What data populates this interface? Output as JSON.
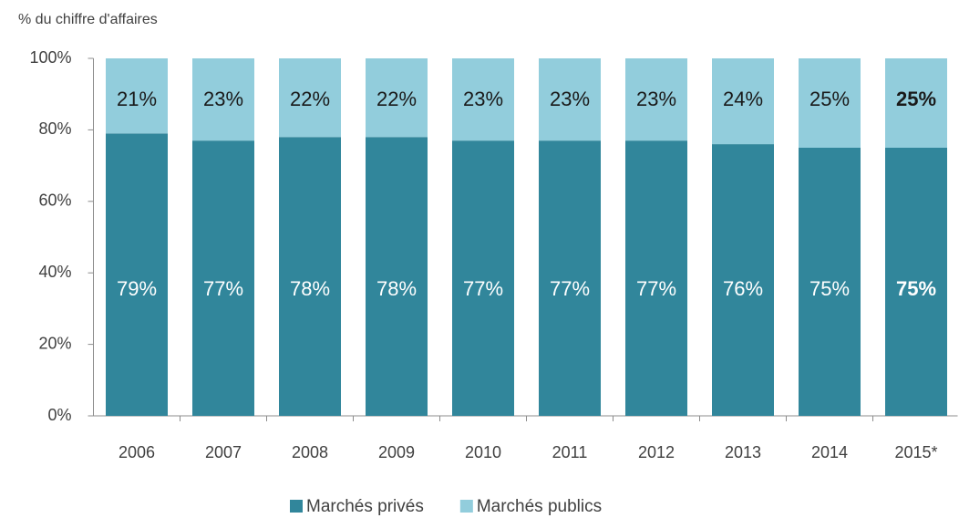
{
  "chart_data": {
    "type": "stacked_bar",
    "y_axis_label": "% du chiffre d'affaires",
    "categories": [
      "2006",
      "2007",
      "2008",
      "2009",
      "2010",
      "2011",
      "2012",
      "2013",
      "2014",
      "2015*"
    ],
    "series": [
      {
        "name": "Marchés privés",
        "color": "#31869b",
        "values": [
          79,
          77,
          78,
          78,
          77,
          77,
          77,
          76,
          75,
          75
        ],
        "value_labels": [
          "79%",
          "77%",
          "78%",
          "78%",
          "77%",
          "77%",
          "77%",
          "76%",
          "75%",
          "75%"
        ]
      },
      {
        "name": "Marchés publics",
        "color": "#92cddc",
        "values": [
          21,
          23,
          22,
          22,
          23,
          23,
          23,
          24,
          25,
          25
        ],
        "value_labels": [
          "21%",
          "23%",
          "22%",
          "22%",
          "23%",
          "23%",
          "23%",
          "24%",
          "25%",
          "25%"
        ]
      }
    ],
    "ylim": [
      0,
      100
    ],
    "yticks": [
      {
        "value": 0,
        "label": "0%"
      },
      {
        "value": 20,
        "label": "20%"
      },
      {
        "value": 40,
        "label": "40%"
      },
      {
        "value": 60,
        "label": "60%"
      },
      {
        "value": 80,
        "label": "80%"
      },
      {
        "value": 100,
        "label": "100%"
      }
    ],
    "legend": "bottom"
  }
}
